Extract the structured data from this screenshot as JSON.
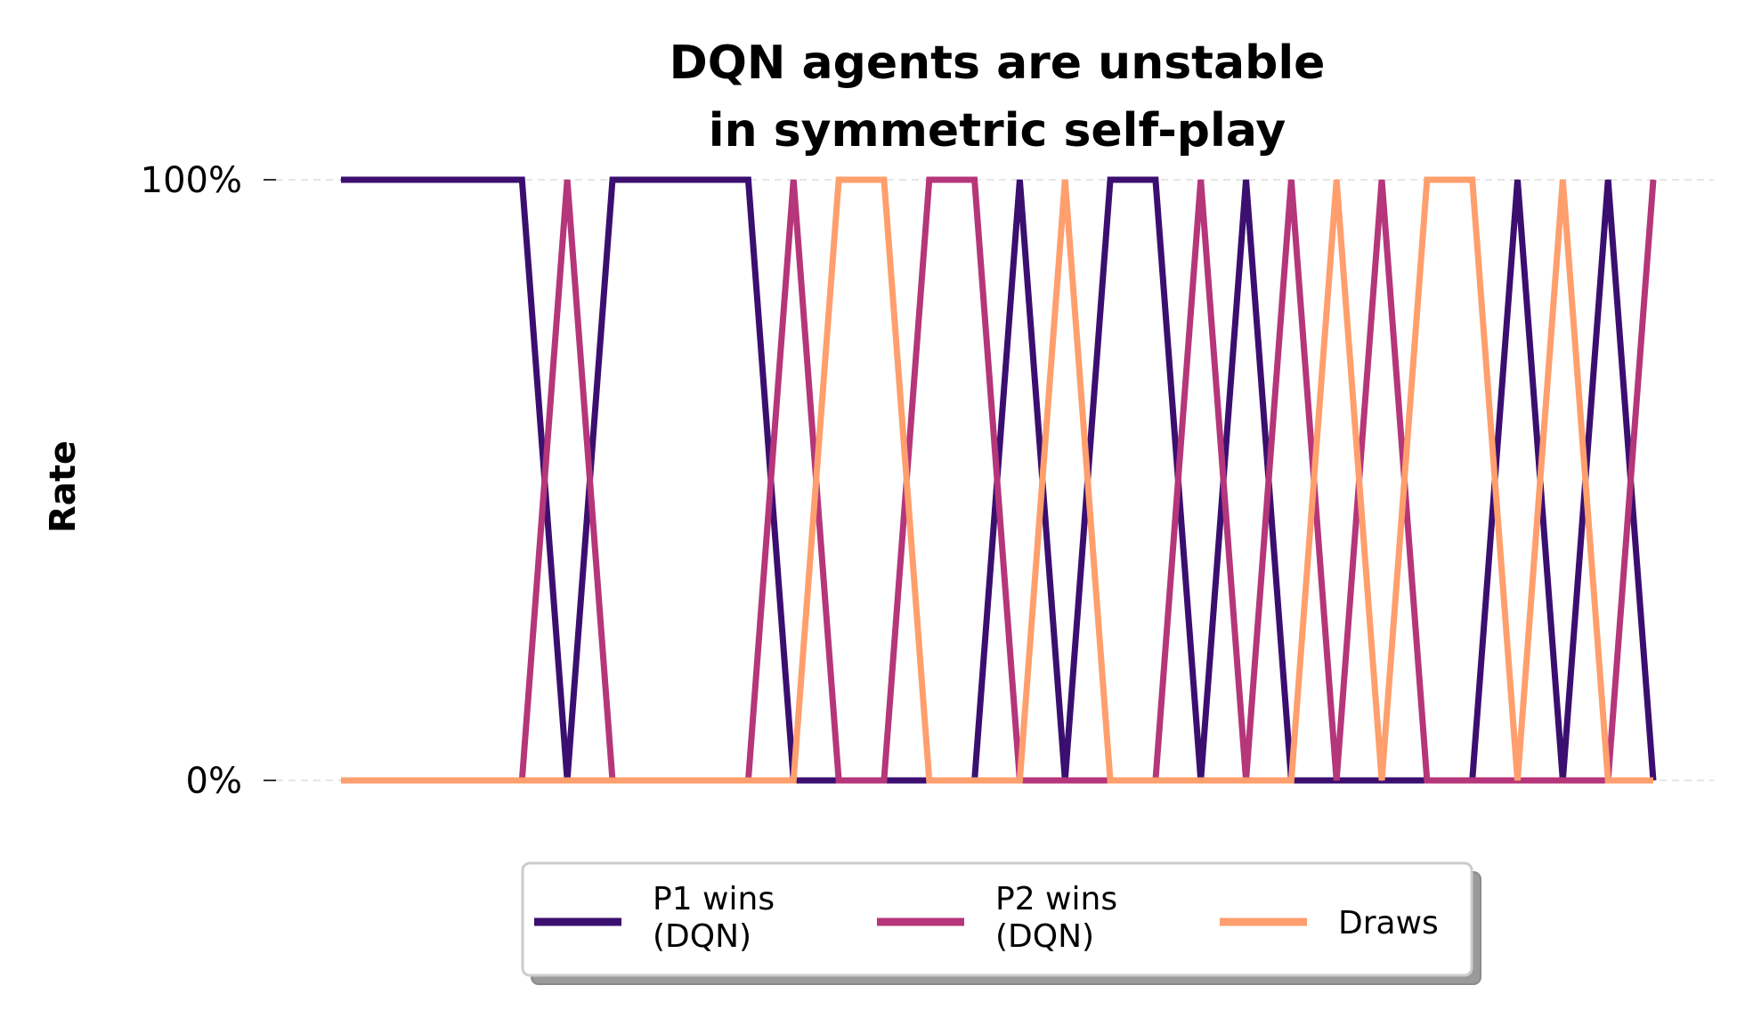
{
  "chart_data": {
    "type": "line",
    "title": [
      "DQN agents are unstable",
      "in symmetric self-play"
    ],
    "xlabel": "",
    "ylabel": "Rate",
    "ylim": [
      0,
      1
    ],
    "y_ticks": [
      {
        "value": 0,
        "label": "0%"
      },
      {
        "value": 1,
        "label": "100%"
      }
    ],
    "x_ticks_visible": false,
    "grid": "horizontal-dashed",
    "legend_placement": "bottom-center",
    "x": [
      0,
      1,
      2,
      3,
      4,
      5,
      6,
      7,
      8,
      9,
      10,
      11,
      12,
      13,
      14,
      15,
      16,
      17,
      18,
      19,
      20,
      21,
      22,
      23,
      24,
      25,
      26,
      27,
      28,
      29
    ],
    "series": [
      {
        "name": [
          "P1 wins",
          "(DQN)"
        ],
        "color": "#3b0f70",
        "values": [
          1,
          1,
          1,
          1,
          1,
          0,
          1,
          1,
          1,
          1,
          0,
          0,
          0,
          0,
          0,
          1,
          0,
          1,
          1,
          0,
          1,
          0,
          0,
          0,
          0,
          0,
          1,
          0,
          1,
          0
        ]
      },
      {
        "name": [
          "P2 wins",
          "(DQN)"
        ],
        "color": "#b5367a",
        "values": [
          0,
          0,
          0,
          0,
          0,
          1,
          0,
          0,
          0,
          0,
          1,
          0,
          0,
          1,
          1,
          0,
          0,
          0,
          0,
          1,
          0,
          1,
          0,
          1,
          0,
          0,
          0,
          0,
          0,
          1
        ]
      },
      {
        "name": [
          "Draws"
        ],
        "color": "#fe9f6d",
        "values": [
          0,
          0,
          0,
          0,
          0,
          0,
          0,
          0,
          0,
          0,
          0,
          1,
          1,
          0,
          0,
          0,
          1,
          0,
          0,
          0,
          0,
          0,
          1,
          0,
          1,
          1,
          0,
          1,
          0,
          0
        ]
      }
    ]
  }
}
